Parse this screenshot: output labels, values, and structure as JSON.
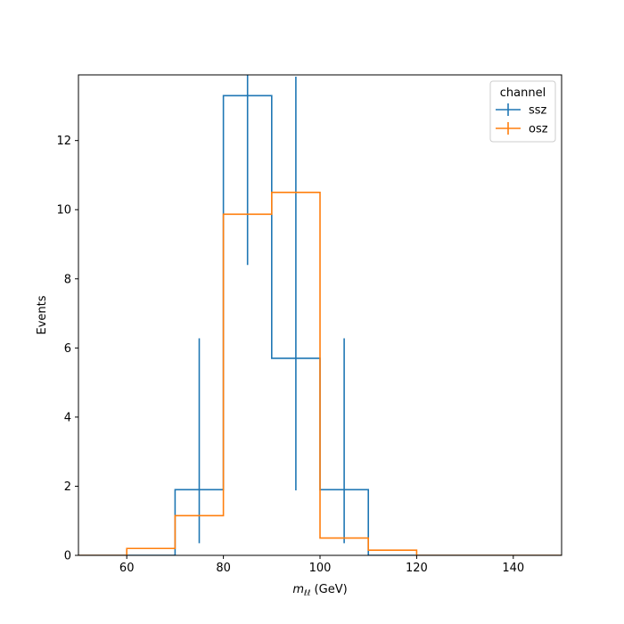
{
  "chart_data": {
    "type": "histogram",
    "xlabel": "m_ll (GeV)",
    "xlabel_base": "m",
    "xlabel_sub": "ℓℓ",
    "xlabel_unit": " (GeV)",
    "ylabel": "Events",
    "xlim": [
      50,
      150
    ],
    "ylim": [
      0,
      13.9
    ],
    "xticks": [
      60,
      80,
      100,
      120,
      140
    ],
    "yticks": [
      0,
      2,
      4,
      6,
      8,
      10,
      12
    ],
    "bin_edges": [
      50,
      60,
      70,
      80,
      90,
      100,
      110,
      120,
      130,
      140,
      150
    ],
    "legend": {
      "title": "channel",
      "position": "top-right"
    },
    "series": [
      {
        "name": "ssz",
        "color": "#1f77b4",
        "values": [
          0,
          0,
          1.9,
          13.3,
          5.7,
          1.9,
          0,
          0,
          0,
          0
        ],
        "errors": [
          null,
          null,
          {
            "low": 0.35,
            "high": 6.28
          },
          {
            "low": 8.4,
            "high": 13.95
          },
          {
            "low": 1.88,
            "high": 13.85
          },
          {
            "low": 0.35,
            "high": 6.28
          },
          null,
          null,
          null,
          null
        ]
      },
      {
        "name": "osz",
        "color": "#ff7f0e",
        "values": [
          0,
          0.2,
          1.15,
          9.87,
          10.5,
          0.5,
          0.15,
          0,
          0,
          0
        ],
        "errors": [
          null,
          null,
          null,
          null,
          null,
          null,
          null,
          null,
          null,
          null
        ]
      }
    ]
  }
}
